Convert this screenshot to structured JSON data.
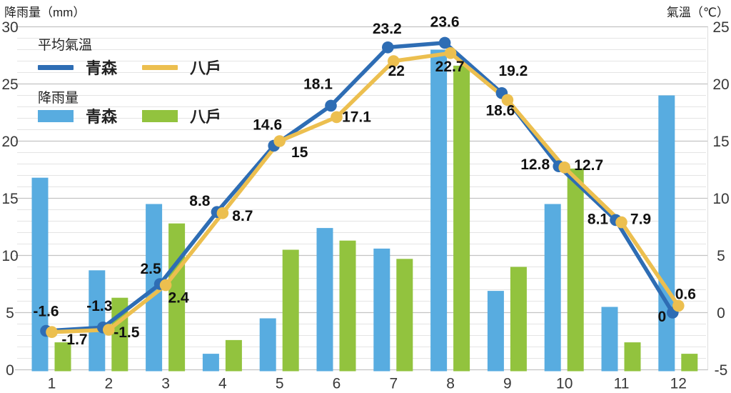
{
  "page": {
    "background": "#ffffff"
  },
  "legend": {
    "temp_group_title": "平均氣溫",
    "rain_group_title": "降雨量",
    "temp_series": [
      {
        "label": "青森"
      },
      {
        "label": "八戶"
      }
    ],
    "rain_series": [
      {
        "label": "青森"
      },
      {
        "label": "八戶"
      }
    ]
  },
  "chart_data": {
    "type": "combo",
    "categories": [
      "1",
      "2",
      "3",
      "4",
      "5",
      "6",
      "7",
      "8",
      "9",
      "10",
      "11",
      "12"
    ],
    "axes": {
      "left": {
        "title": "降雨量（mm）",
        "min": 0,
        "max": 30,
        "ticks": [
          30,
          25,
          20,
          15,
          10,
          5,
          0
        ]
      },
      "right": {
        "title": "氣溫（℃）",
        "min": -5,
        "max": 25,
        "ticks": [
          25,
          20,
          15,
          10,
          5,
          0,
          -5
        ]
      }
    },
    "grid": {
      "minor_step": 1,
      "major_step": 5,
      "minor_color": "#e4e4e4",
      "major_color": "#c3c3c3"
    },
    "series": [
      {
        "key": "aomori_rain",
        "name": "青森 降雨量",
        "type": "bar",
        "color": "#58ace0",
        "values": [
          16.8,
          8.7,
          14.5,
          1.4,
          4.5,
          12.4,
          10.6,
          28,
          6.9,
          14.5,
          5.5,
          24
        ]
      },
      {
        "key": "hachinohe_rain",
        "name": "八戶 降雨量",
        "type": "bar",
        "color": "#92c33e",
        "values": [
          2.4,
          6.3,
          12.8,
          2.6,
          10.5,
          11.3,
          9.7,
          26.6,
          9,
          17.6,
          2.4,
          1.4
        ]
      },
      {
        "key": "aomori_temp",
        "name": "青森 平均氣溫",
        "type": "line",
        "color": "#2e6db4",
        "values": [
          -1.6,
          -1.3,
          2.5,
          8.8,
          14.6,
          18.1,
          23.2,
          23.6,
          19.2,
          12.8,
          8.1,
          0
        ]
      },
      {
        "key": "hachinohe_temp",
        "name": "八戶 平均氣溫",
        "type": "line",
        "color": "#ecbf4f",
        "values": [
          -1.7,
          -1.5,
          2.4,
          8.7,
          15,
          17.1,
          22,
          22.7,
          18.6,
          12.7,
          7.9,
          0.6
        ]
      }
    ]
  }
}
